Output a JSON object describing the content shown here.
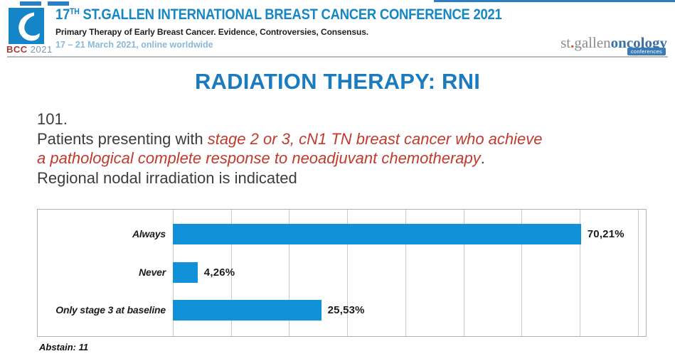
{
  "header": {
    "logo_caption_bcc": "BCC",
    "logo_caption_year": "2021",
    "title_num": "17",
    "title_sup": "TH",
    "title_rest": " ST.GALLEN INTERNATIONAL BREAST CANCER CONFERENCE 2021",
    "subtitle": "Primary Therapy of Early Breast Cancer. Evidence, Controversies, Consensus.",
    "dates": "17 – 21 March 2021, online worldwide",
    "brand_left": "st",
    "brand_dot": ".",
    "brand_mid": "gallen",
    "brand_right": "oncology",
    "brand_badge": "conferences"
  },
  "slide": {
    "title": "RADIATION THERAPY: RNI",
    "question_number": "101.",
    "question_intro": "Patients presenting with ",
    "question_highlight_line1": "stage 2 or 3, cN1 TN breast cancer who achieve",
    "question_highlight_line2": "a pathological complete response to neoadjuvant chemotherapy",
    "question_period": ".",
    "question_tail": "Regional nodal irradiation is indicated",
    "abstain_note": "Abstain: 11"
  },
  "chart_data": {
    "type": "bar",
    "orientation": "horizontal",
    "title": "",
    "xlabel": "",
    "ylabel": "",
    "categories": [
      "Always",
      "Never",
      "Only stage 3 at baseline"
    ],
    "values": [
      70.21,
      4.26,
      25.53
    ],
    "value_labels": [
      "70,21%",
      "4,26%",
      "25,53%"
    ],
    "xlim": [
      0,
      81.5
    ],
    "gridline_interval": 10,
    "grid": true,
    "legend": false,
    "bar_color": "#1191d8"
  }
}
